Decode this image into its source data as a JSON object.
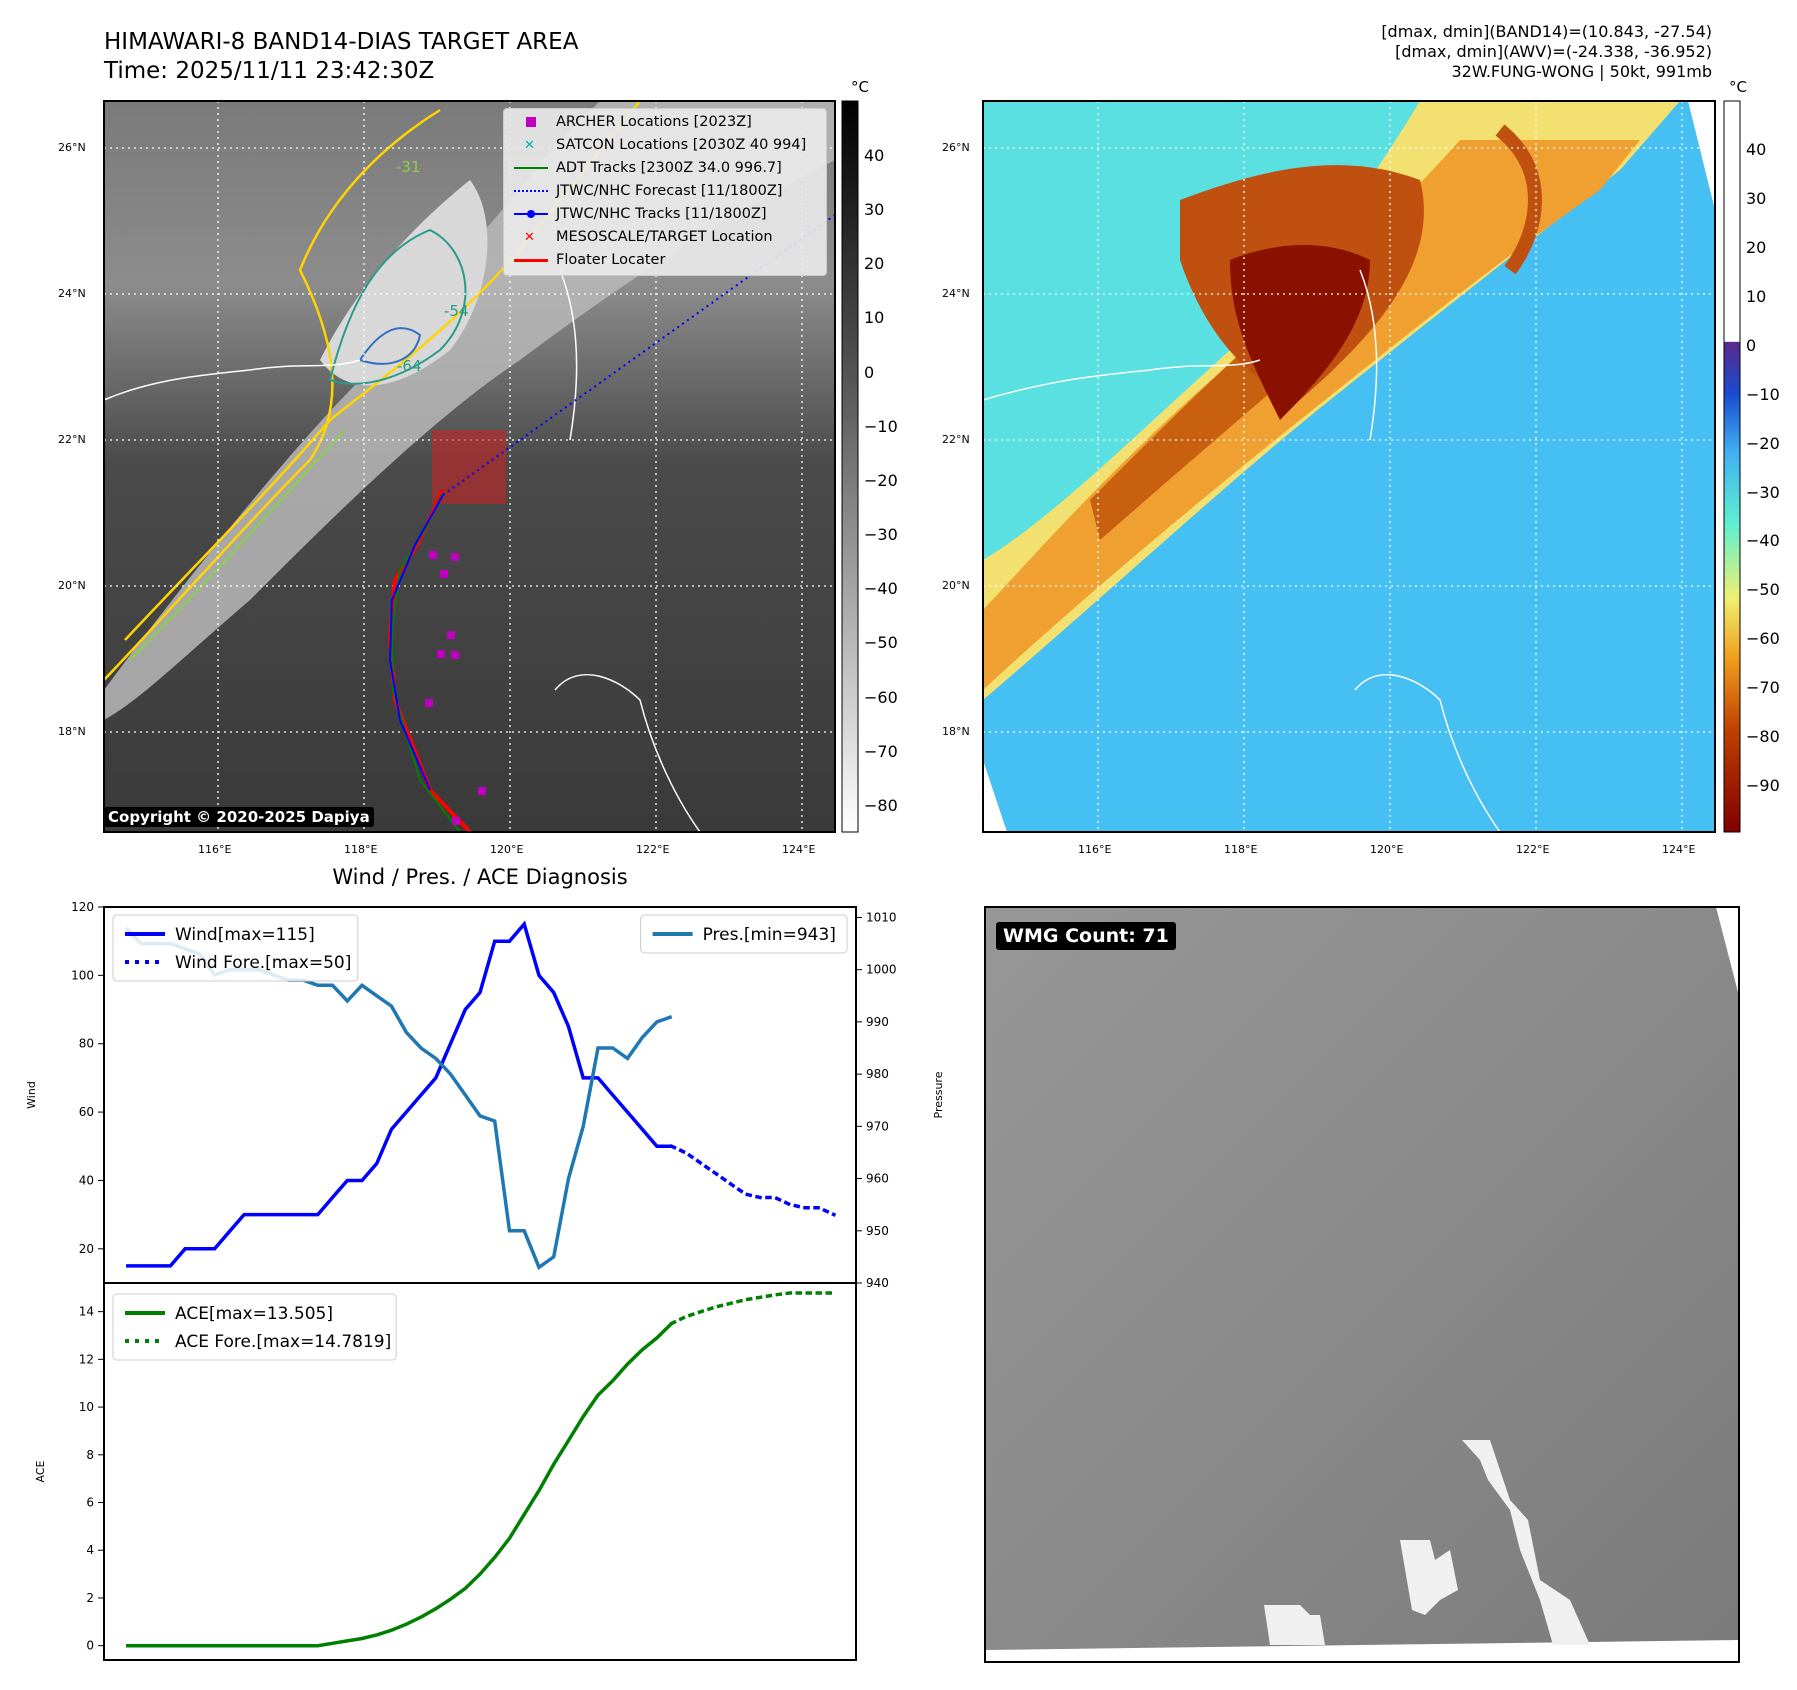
{
  "header": {
    "title_line1": "HIMAWARI-8 BAND14-DIAS TARGET AREA",
    "title_line2": "Time: 2025/11/11 23:42:30Z",
    "info_line1": "[dmax, dmin](BAND14)=(10.843, -27.54)",
    "info_line2": "[dmax, dmin](AWV)=(-24.338, -36.952)",
    "info_line3": "32W.FUNG-WONG | 50kt, 991mb"
  },
  "map_common": {
    "lat_labels": [
      "26°N",
      "24°N",
      "22°N",
      "20°N",
      "18°N"
    ],
    "lon_labels": [
      "116°E",
      "118°E",
      "120°E",
      "122°E",
      "124°E"
    ]
  },
  "ir_map": {
    "colorbar_unit": "°C",
    "colorbar_ticks": [
      "40",
      "30",
      "20",
      "10",
      "0",
      "−10",
      "−20",
      "−30",
      "−40",
      "−50",
      "−60",
      "−70",
      "−80"
    ],
    "contour_labels": [
      "-64",
      "-54",
      "-31"
    ],
    "legend": [
      {
        "label": "ARCHER Locations [2023Z]",
        "color": "#c000c0",
        "marker": "square"
      },
      {
        "label": "SATCON Locations [2030Z 40 994]",
        "color": "#00b0b0",
        "marker": "x"
      },
      {
        "label": "ADT Tracks [2300Z 34.0 996.7]",
        "color": "#008000",
        "marker": "line"
      },
      {
        "label": "JTWC/NHC Forecast [11/1800Z]",
        "color": "#0000ff",
        "marker": "dotted"
      },
      {
        "label": "JTWC/NHC Tracks [11/1800Z]",
        "color": "#0000ff",
        "marker": "line-dot"
      },
      {
        "label": "MESOSCALE/TARGET Location",
        "color": "#ff0000",
        "marker": "x"
      },
      {
        "label": "Floater Locater",
        "color": "#ff0000",
        "marker": "line"
      }
    ],
    "copyright": "Copyright © 2020-2025 Dapiya"
  },
  "awv_map": {
    "colorbar_unit": "°C",
    "colorbar_ticks": [
      "40",
      "30",
      "20",
      "10",
      "0",
      "−10",
      "−20",
      "−30",
      "−40",
      "−50",
      "−60",
      "−70",
      "−80",
      "−90"
    ]
  },
  "diagnosis": {
    "title": "Wind / Pres. / ACE Diagnosis"
  },
  "wmg": {
    "label": "WMG Count: 71"
  },
  "chart_data": [
    {
      "type": "line",
      "title": "Wind / Pres. / ACE Diagnosis",
      "ylabel": "Wind",
      "ylim": [
        10,
        120
      ],
      "yticks": [
        20,
        40,
        60,
        80,
        100,
        120
      ],
      "series": [
        {
          "name": "Wind[max=115]",
          "color": "#0000ff",
          "style": "solid",
          "x": [
            0,
            1,
            2,
            3,
            4,
            5,
            6,
            7,
            8,
            9,
            10,
            11,
            12,
            13,
            14,
            15,
            16,
            17,
            18,
            19,
            20,
            21,
            22,
            23,
            24,
            25,
            26,
            27,
            28,
            29,
            30,
            31,
            32,
            33,
            34,
            35,
            36,
            37
          ],
          "values": [
            15,
            15,
            15,
            15,
            20,
            20,
            20,
            25,
            30,
            30,
            30,
            30,
            30,
            30,
            35,
            40,
            40,
            45,
            55,
            60,
            65,
            70,
            80,
            90,
            95,
            110,
            110,
            115,
            100,
            95,
            85,
            70,
            70,
            65,
            60,
            55,
            50,
            50
          ]
        },
        {
          "name": "Wind Fore.[max=50]",
          "color": "#0000ff",
          "style": "dotted",
          "x": [
            37,
            38,
            39,
            40,
            41,
            42,
            43,
            44,
            45,
            46,
            47,
            48
          ],
          "values": [
            50,
            48,
            45,
            42,
            39,
            36,
            35,
            35,
            33,
            32,
            32,
            30
          ]
        }
      ]
    },
    {
      "type": "line",
      "ylabel": "Pressure",
      "ylim": [
        940,
        1012
      ],
      "yticks": [
        940,
        950,
        960,
        970,
        980,
        990,
        1000,
        1010
      ],
      "series": [
        {
          "name": "Pres.[min=943]",
          "color": "#1f77b4",
          "style": "solid",
          "x": [
            0,
            1,
            2,
            3,
            4,
            5,
            6,
            7,
            8,
            9,
            10,
            11,
            12,
            13,
            14,
            15,
            16,
            17,
            18,
            19,
            20,
            21,
            22,
            23,
            24,
            25,
            26,
            27,
            28,
            29,
            30,
            31,
            32,
            33,
            34,
            35,
            36,
            37
          ],
          "values": [
            1008,
            1005,
            1005,
            1005,
            1004,
            1003,
            999,
            1000,
            1000,
            1000,
            999,
            998,
            998,
            997,
            997,
            994,
            997,
            995,
            993,
            988,
            985,
            983,
            980,
            976,
            972,
            971,
            950,
            950,
            943,
            945,
            960,
            970,
            985,
            985,
            983,
            987,
            990,
            991
          ]
        }
      ]
    },
    {
      "type": "line",
      "ylabel": "ACE",
      "ylim": [
        -0.6,
        15.2
      ],
      "yticks": [
        0,
        2,
        4,
        6,
        8,
        10,
        12,
        14
      ],
      "series": [
        {
          "name": "ACE[max=13.505]",
          "color": "#008000",
          "style": "solid",
          "x": [
            0,
            1,
            2,
            3,
            4,
            5,
            6,
            7,
            8,
            9,
            10,
            11,
            12,
            13,
            14,
            15,
            16,
            17,
            18,
            19,
            20,
            21,
            22,
            23,
            24,
            25,
            26,
            27,
            28,
            29,
            30,
            31,
            32,
            33,
            34,
            35,
            36,
            37
          ],
          "values": [
            0,
            0,
            0,
            0,
            0,
            0,
            0,
            0,
            0,
            0,
            0,
            0,
            0,
            0,
            0.1,
            0.2,
            0.3,
            0.45,
            0.65,
            0.9,
            1.2,
            1.55,
            1.95,
            2.4,
            3.0,
            3.7,
            4.5,
            5.5,
            6.5,
            7.6,
            8.6,
            9.6,
            10.5,
            11.1,
            11.8,
            12.4,
            12.9,
            13.505
          ]
        },
        {
          "name": "ACE Fore.[max=14.7819]",
          "color": "#008000",
          "style": "dotted",
          "x": [
            37,
            38,
            39,
            40,
            41,
            42,
            43,
            44,
            45,
            46,
            47,
            48
          ],
          "values": [
            13.505,
            13.8,
            14.0,
            14.2,
            14.35,
            14.5,
            14.6,
            14.7,
            14.78,
            14.78,
            14.78,
            14.78
          ]
        }
      ]
    }
  ]
}
